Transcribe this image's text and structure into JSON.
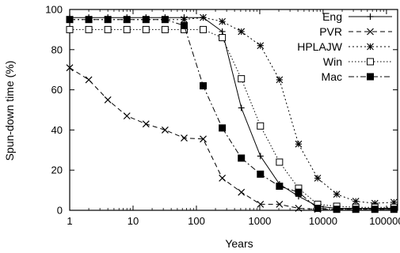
{
  "chart_data": {
    "type": "line",
    "title": "",
    "xlabel": "Years",
    "ylabel": "Spun-down time (%)",
    "x_scale": "log",
    "xlim": [
      1,
      150000
    ],
    "ylim": [
      0,
      100
    ],
    "x_ticks": [
      1,
      10,
      100,
      1000,
      10000,
      100000
    ],
    "x_tick_labels": [
      "1",
      "10",
      "100",
      "1000",
      "10000",
      "100000"
    ],
    "y_ticks": [
      0,
      20,
      40,
      60,
      80,
      100
    ],
    "y_tick_labels": [
      "0",
      "20",
      "40",
      "60",
      "80",
      "100"
    ],
    "grid": false,
    "legend_position": "top-right",
    "x": [
      1,
      2,
      4,
      8,
      16,
      32,
      64,
      128,
      256,
      512,
      1024,
      2048,
      4096,
      8192,
      16384,
      32768,
      65536,
      131072
    ],
    "series": [
      {
        "name": "Eng",
        "marker": "plus",
        "dash": "solid",
        "values": [
          96,
          96,
          96,
          96,
          96,
          96,
          96,
          96,
          89,
          51,
          27,
          13,
          7,
          2,
          1,
          1,
          1,
          1
        ]
      },
      {
        "name": "PVR",
        "marker": "cross",
        "dash": "dashed",
        "values": [
          71,
          65,
          55,
          47,
          43,
          40,
          36,
          35.5,
          16,
          9,
          3,
          3,
          1,
          0.5,
          0.5,
          0.5,
          0.5,
          0.5
        ]
      },
      {
        "name": "HPLAJW",
        "marker": "star",
        "dash": "dotted-dense",
        "values": [
          95,
          95,
          95,
          95,
          95,
          95,
          95,
          96,
          94,
          89,
          82,
          65,
          33,
          16,
          8,
          4.5,
          3.5,
          4
        ]
      },
      {
        "name": "Win",
        "marker": "open-square",
        "dash": "dotted",
        "values": [
          90,
          90,
          90,
          90,
          90,
          90,
          90,
          90,
          86,
          65.5,
          42,
          24,
          11,
          3,
          2,
          1.5,
          1.5,
          1.5
        ]
      },
      {
        "name": "Mac",
        "marker": "filled-square",
        "dash": "dashdot",
        "values": [
          95,
          95,
          95,
          95,
          95,
          95,
          92,
          62,
          41,
          26,
          18,
          12,
          9,
          1,
          0.5,
          0.5,
          0.5,
          0.5
        ]
      }
    ]
  }
}
